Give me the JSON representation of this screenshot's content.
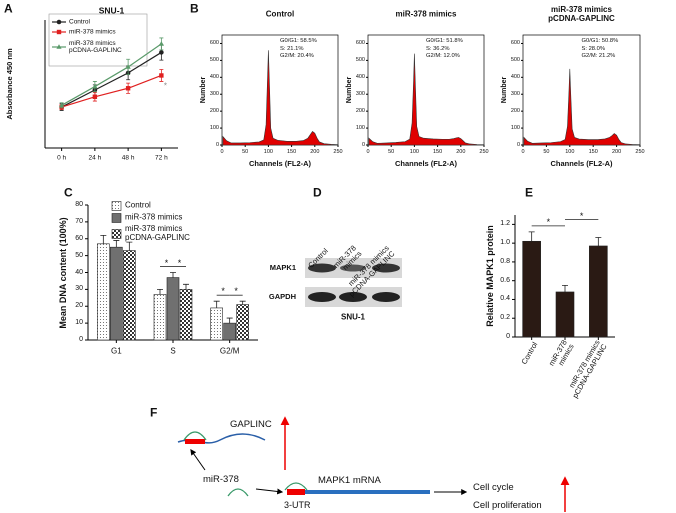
{
  "panels": [
    "A",
    "B",
    "C",
    "D",
    "E",
    "F"
  ],
  "chart_data": [
    {
      "type": "line",
      "title": "SNU-1",
      "y_label": "Absorbance 450 nm",
      "categories": [
        "0 h",
        "24 h",
        "48 h",
        "72 h"
      ],
      "ylim": [
        0,
        1.5
      ],
      "series": [
        {
          "name": "Control",
          "color": "#222222",
          "marker": "circle",
          "values": [
            0.48,
            0.68,
            0.88,
            1.12
          ],
          "errors": [
            0.04,
            0.06,
            0.08,
            0.09
          ]
        },
        {
          "name": "miR-378 mimics",
          "color": "#e02020",
          "marker": "square",
          "values": [
            0.48,
            0.6,
            0.7,
            0.85
          ],
          "errors": [
            0.03,
            0.05,
            0.06,
            0.07
          ]
        },
        {
          "name": "miR-378 mimics\npCDNA-GAPLINC",
          "color": "#5a9a6a",
          "marker": "triangle",
          "values": [
            0.5,
            0.72,
            0.95,
            1.22
          ],
          "errors": [
            0.03,
            0.06,
            0.09,
            0.07
          ]
        }
      ],
      "annotations": [
        "*"
      ]
    },
    {
      "type": "area",
      "title": "Control",
      "x_label": "Channels (FL2-A)",
      "y_label": "Number",
      "xlim": [
        0,
        250
      ],
      "ylim": [
        0,
        650
      ],
      "xticks": [
        0,
        50,
        100,
        150,
        200,
        250
      ],
      "yticks": [
        0,
        100,
        200,
        300,
        400,
        500,
        600
      ],
      "color": "#e00000",
      "x": [
        2,
        10,
        20,
        40,
        60,
        80,
        90,
        95,
        98,
        100,
        102,
        105,
        110,
        120,
        140,
        160,
        175,
        185,
        190,
        195,
        200,
        205,
        210,
        220,
        235,
        250
      ],
      "values": [
        50,
        25,
        12,
        12,
        14,
        18,
        30,
        120,
        380,
        560,
        380,
        100,
        40,
        28,
        22,
        22,
        26,
        40,
        60,
        80,
        70,
        40,
        18,
        8,
        4,
        2
      ],
      "annotations": [
        "G0/G1: 58.5%",
        "S: 21.1%",
        "G2/M: 20.4%"
      ]
    },
    {
      "type": "area",
      "title": "miR-378 mimics",
      "x_label": "Channels (FL2-A)",
      "y_label": "Number",
      "xlim": [
        0,
        250
      ],
      "ylim": [
        0,
        650
      ],
      "xticks": [
        0,
        50,
        100,
        150,
        200,
        250
      ],
      "yticks": [
        0,
        100,
        200,
        300,
        400,
        500,
        600
      ],
      "color": "#e00000",
      "x": [
        2,
        10,
        20,
        40,
        60,
        80,
        90,
        95,
        98,
        100,
        102,
        105,
        110,
        120,
        140,
        160,
        175,
        185,
        190,
        195,
        200,
        205,
        210,
        220,
        235,
        250
      ],
      "values": [
        40,
        20,
        10,
        12,
        15,
        20,
        35,
        130,
        360,
        540,
        360,
        110,
        50,
        40,
        36,
        34,
        34,
        38,
        42,
        45,
        38,
        25,
        12,
        6,
        3,
        2
      ],
      "annotations": [
        "G0/G1: 51.8%",
        "S: 36.2%",
        "G2/M: 12.0%"
      ]
    },
    {
      "type": "area",
      "title": "miR-378 mimics\npCDNA-GAPLINC",
      "x_label": "Channels (FL2-A)",
      "y_label": "Number",
      "xlim": [
        0,
        250
      ],
      "ylim": [
        0,
        650
      ],
      "xticks": [
        0,
        50,
        100,
        150,
        200,
        250
      ],
      "yticks": [
        0,
        100,
        200,
        300,
        400,
        500,
        600
      ],
      "color": "#e00000",
      "x": [
        2,
        10,
        20,
        40,
        60,
        80,
        90,
        95,
        98,
        100,
        102,
        105,
        110,
        120,
        140,
        160,
        175,
        185,
        190,
        195,
        200,
        205,
        210,
        220,
        235,
        250
      ],
      "values": [
        45,
        22,
        10,
        12,
        14,
        20,
        32,
        110,
        300,
        450,
        300,
        95,
        45,
        35,
        32,
        32,
        36,
        45,
        55,
        68,
        58,
        32,
        14,
        6,
        3,
        2
      ],
      "annotations": [
        "G0/G1: 50.8%",
        "S: 28.0%",
        "G2/M: 21.2%"
      ]
    },
    {
      "type": "bar",
      "y_label": "Mean DNA content (100%)",
      "categories": [
        "G1",
        "S",
        "G2/M"
      ],
      "ylim": [
        0,
        80
      ],
      "yticks": [
        0,
        10,
        20,
        30,
        40,
        50,
        60,
        70,
        80
      ],
      "series": [
        {
          "name": "Control",
          "pattern": "dots",
          "values": [
            57,
            27,
            19
          ],
          "errors": [
            5,
            3,
            4
          ]
        },
        {
          "name": "miR-378 mimics",
          "pattern": "solid",
          "values": [
            55,
            37,
            10
          ],
          "errors": [
            4,
            3,
            3
          ]
        },
        {
          "name": "miR-378 mimics\npCDNA-GAPLINC",
          "pattern": "checker",
          "values": [
            53,
            30,
            21
          ],
          "errors": [
            5,
            3,
            2
          ]
        }
      ],
      "annotations": [
        "*",
        "*",
        "*",
        "*"
      ]
    },
    {
      "type": "bar",
      "y_label": "Relative MAPK1 protein",
      "categories": [
        "Control",
        "miR-378\nmimics",
        "miR-378 mimics\npCDNA-GAPLINC"
      ],
      "ylim": [
        0,
        1.3
      ],
      "yticks": [
        0,
        0.2,
        0.4,
        0.6,
        0.8,
        {
          "value": 1,
          "label": "1.0"
        },
        1.2
      ],
      "color": "#2a1a14",
      "values": [
        1.02,
        0.48,
        0.97
      ],
      "errors": [
        0.1,
        0.07,
        0.09
      ],
      "annotations": [
        "*",
        "*"
      ]
    }
  ],
  "blot": {
    "lanes": [
      "Control",
      "miR-378\nmimics",
      "miR-378 mimics\npCDNA-GAPLINC"
    ],
    "rows": [
      "MAPK1",
      "GAPDH"
    ],
    "caption": "SNU-1"
  },
  "diagram": {
    "gene": "GAPLINC",
    "mirna": "miR-378",
    "mrna": "MAPK1 mRNA",
    "utr": "3-UTR",
    "outcomes": [
      "Cell cycle",
      "Cell proliferation"
    ]
  }
}
